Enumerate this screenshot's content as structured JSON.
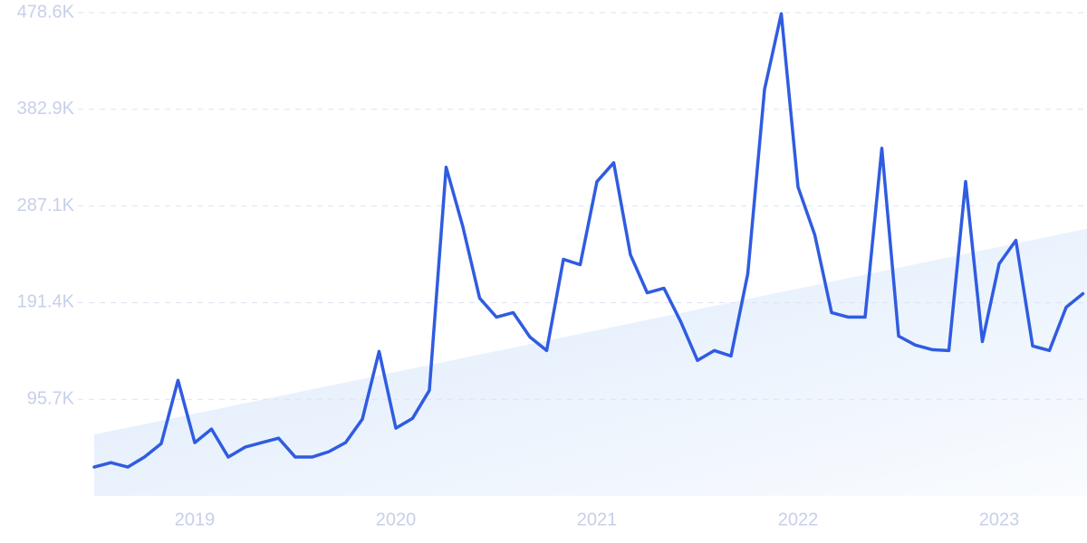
{
  "chart_data": {
    "type": "line",
    "categories": [
      null,
      null,
      null,
      null,
      null,
      null,
      "2019",
      null,
      null,
      null,
      null,
      null,
      null,
      null,
      null,
      null,
      null,
      null,
      "2020",
      null,
      null,
      null,
      null,
      null,
      null,
      null,
      null,
      null,
      null,
      null,
      "2021",
      null,
      null,
      null,
      null,
      null,
      null,
      null,
      null,
      null,
      null,
      null,
      "2022",
      null,
      null,
      null,
      null,
      null,
      null,
      null,
      null,
      null,
      null,
      null,
      "2023",
      null,
      null,
      null,
      null,
      null
    ],
    "series": [
      {
        "color": "#2f5ce0",
        "values": [
          28600,
          33000,
          28600,
          38500,
          51900,
          114500,
          52800,
          66200,
          38500,
          48300,
          52800,
          57200,
          38500,
          38500,
          43800,
          52800,
          76000,
          143100,
          67100,
          76900,
          104600,
          325600,
          266500,
          195900,
          177100,
          181600,
          157400,
          144000,
          234300,
          229000,
          311300,
          330000,
          238800,
          201200,
          205700,
          172600,
          134200,
          144000,
          138600,
          220000,
          402500,
          477600,
          305900,
          258500,
          181600,
          177100,
          177100,
          344300,
          158300,
          149400,
          144900,
          144000,
          311300,
          152900,
          229900,
          253100,
          148500,
          144000,
          186900,
          200300
        ]
      }
    ],
    "trend": {
      "color": "#dbe9fb",
      "values": [
        60800,
        264700
      ]
    },
    "ylim": [
      0,
      478600
    ],
    "yticks": [
      {
        "value": 95700,
        "label": "95.7K"
      },
      {
        "value": 191400,
        "label": "191.4K"
      },
      {
        "value": 287100,
        "label": "287.1K"
      },
      {
        "value": 382900,
        "label": "382.9K"
      },
      {
        "value": 478600,
        "label": "478.6K"
      }
    ],
    "grid": true
  }
}
